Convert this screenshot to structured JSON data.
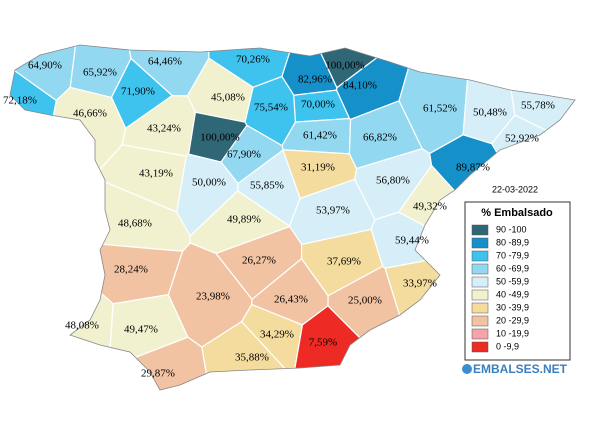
{
  "date": "22-03-2022",
  "legend": {
    "title": "% Embalsado",
    "bins": [
      {
        "label": "90 -100",
        "min": 90,
        "color": "#2f6776"
      },
      {
        "label": "80 -89,9",
        "min": 80,
        "color": "#1590c8"
      },
      {
        "label": "70 -79,9",
        "min": 70,
        "color": "#3ec3ef"
      },
      {
        "label": "60 -69,9",
        "min": 60,
        "color": "#93d8f1"
      },
      {
        "label": "50 -59,9",
        "min": 50,
        "color": "#d5eef8"
      },
      {
        "label": "40 -49,9",
        "min": 40,
        "color": "#f2f1cf"
      },
      {
        "label": "30 -39,9",
        "min": 30,
        "color": "#f4dc9f"
      },
      {
        "label": "20 -29,9",
        "min": 20,
        "color": "#f2c3a3"
      },
      {
        "label": "10 -19,9",
        "min": 10,
        "color": "#f5a3a9"
      },
      {
        "label": "0 -9,9",
        "min": 0,
        "color": "#ee2a24"
      }
    ]
  },
  "logo": "EMBALSES.NET",
  "regions": [
    {
      "value": 64.9,
      "label": "64,90%"
    },
    {
      "value": 65.92,
      "label": "65,92%"
    },
    {
      "value": 64.46,
      "label": "64,46%"
    },
    {
      "value": 70.26,
      "label": "70,26%"
    },
    {
      "value": 100,
      "label": "100,00%"
    },
    {
      "value": 72.18,
      "label": "72,18%"
    },
    {
      "value": 71.9,
      "label": "71,90%"
    },
    {
      "value": 45.08,
      "label": "45,08%"
    },
    {
      "value": 82.96,
      "label": "82,96%"
    },
    {
      "value": 84.1,
      "label": "84,10%"
    },
    {
      "value": 75.54,
      "label": "75,54%"
    },
    {
      "value": 70,
      "label": "70,00%"
    },
    {
      "value": 61.52,
      "label": "61,52%"
    },
    {
      "value": 50.48,
      "label": "50,48%"
    },
    {
      "value": 55.78,
      "label": "55,78%"
    },
    {
      "value": 46.66,
      "label": "46,66%"
    },
    {
      "value": 43.24,
      "label": "43,24%"
    },
    {
      "value": 100,
      "label": "100,00%"
    },
    {
      "value": 61.42,
      "label": "61,42%"
    },
    {
      "value": 66.82,
      "label": "66,82%"
    },
    {
      "value": 52.92,
      "label": "52,92%"
    },
    {
      "value": 67.9,
      "label": "67,90%"
    },
    {
      "value": 89.87,
      "label": "89,87%"
    },
    {
      "value": 31.19,
      "label": "31,19%"
    },
    {
      "value": 43.19,
      "label": "43,19%"
    },
    {
      "value": 50,
      "label": "50,00%"
    },
    {
      "value": 55.85,
      "label": "55,85%"
    },
    {
      "value": 56.8,
      "label": "56,80%"
    },
    {
      "value": 49.32,
      "label": "49,32%"
    },
    {
      "value": 53.97,
      "label": "53,97%"
    },
    {
      "value": 48.68,
      "label": "48,68%"
    },
    {
      "value": 49.89,
      "label": "49,89%"
    },
    {
      "value": 59.44,
      "label": "59,44%"
    },
    {
      "value": 28.24,
      "label": "28,24%"
    },
    {
      "value": 26.27,
      "label": "26,27%"
    },
    {
      "value": 37.69,
      "label": "37,69%"
    },
    {
      "value": 33.97,
      "label": "33,97%"
    },
    {
      "value": 25,
      "label": "25,00%"
    },
    {
      "value": 23.98,
      "label": "23,98%"
    },
    {
      "value": 26.43,
      "label": "26,43%"
    },
    {
      "value": 48.08,
      "label": "48,08%"
    },
    {
      "value": 49.47,
      "label": "49,47%"
    },
    {
      "value": 34.29,
      "label": "34,29%"
    },
    {
      "value": 7.59,
      "label": "7,59%"
    },
    {
      "value": 35.88,
      "label": "35,88%"
    },
    {
      "value": 29.87,
      "label": "29,87%"
    }
  ]
}
